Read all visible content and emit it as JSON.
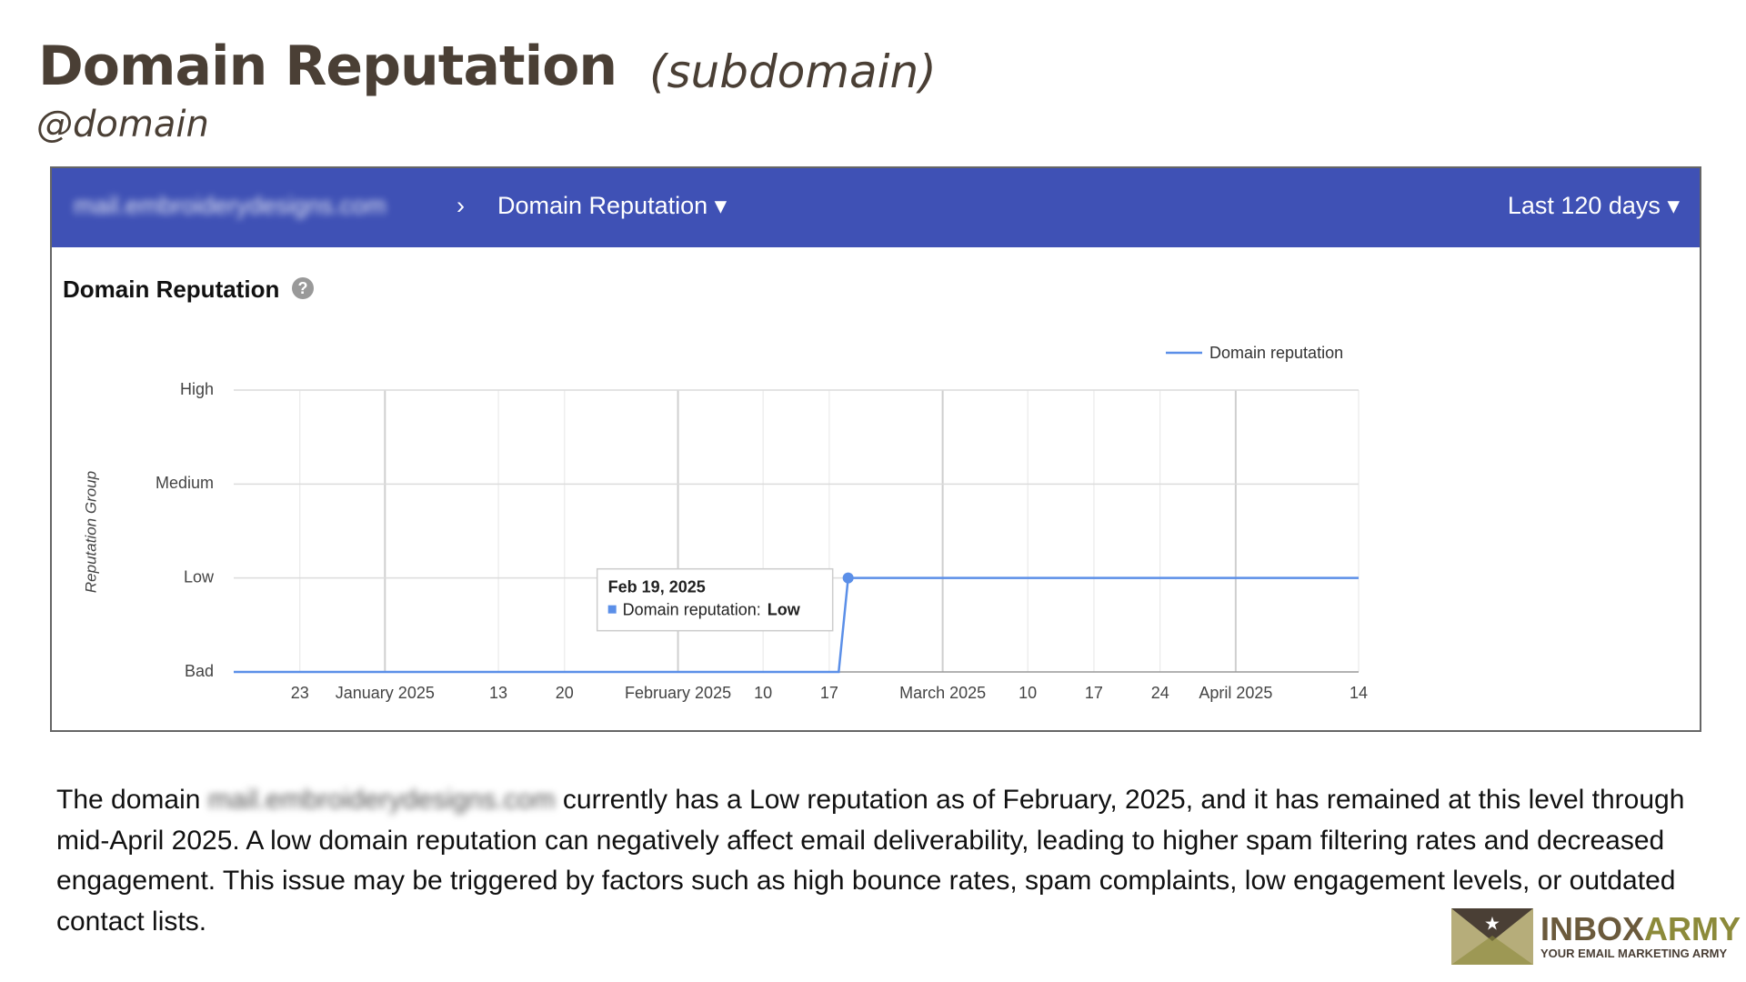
{
  "header": {
    "title": "Domain Reputation",
    "subtitle": "(subdomain)",
    "domain": "@domain"
  },
  "toolbar": {
    "domain": "mail.embroiderydesigns.com",
    "report": "Domain Reputation",
    "range": "Last 120 days"
  },
  "card": {
    "title": "Domain Reputation"
  },
  "chart_data": {
    "type": "line",
    "y_label": "Reputation Group",
    "legend": "top-right",
    "grid": true,
    "x": [
      "2024-12-16",
      "2025-02-18",
      "2025-02-19",
      "2025-04-14"
    ],
    "series": [
      {
        "name": "Domain reputation",
        "color": "#5b8fe8",
        "values": [
          0,
          0,
          1,
          1
        ]
      }
    ],
    "xlim": [
      "2024-12-16",
      "2025-04-14"
    ],
    "xticks": [
      {
        "value": "2024-12-23",
        "label": "23"
      },
      {
        "value": "2025-01-01",
        "label": "January 2025"
      },
      {
        "value": "2025-01-13",
        "label": "13"
      },
      {
        "value": "2025-01-20",
        "label": "20"
      },
      {
        "value": "2025-02-01",
        "label": "February 2025"
      },
      {
        "value": "2025-02-10",
        "label": "10"
      },
      {
        "value": "2025-02-17",
        "label": "17"
      },
      {
        "value": "2025-03-01",
        "label": "March 2025"
      },
      {
        "value": "2025-03-10",
        "label": "10"
      },
      {
        "value": "2025-03-17",
        "label": "17"
      },
      {
        "value": "2025-03-24",
        "label": "24"
      },
      {
        "value": "2025-04-01",
        "label": "April 2025"
      },
      {
        "value": "2025-04-14",
        "label": "14"
      }
    ],
    "ylim": [
      0,
      3
    ],
    "yticks": [
      {
        "value": 0,
        "label": "Bad"
      },
      {
        "value": 1,
        "label": "Low"
      },
      {
        "value": 2,
        "label": "Medium"
      },
      {
        "value": 3,
        "label": "High"
      }
    ],
    "tooltip": {
      "title": "Feb 19, 2025",
      "label": "Domain reputation:",
      "value": "Low"
    }
  },
  "paragraph": {
    "parts": [
      "The domain ",
      "mail.embroiderydesigns.com",
      " currently has a Low reputation as of February, 2025, and it has remained at this level through mid-April 2025. A low domain reputation can negatively affect email deliverability, leading to higher spam filtering rates and decreased engagement. This issue may be triggered by factors such as high bounce rates, spam complaints, low engagement levels, or outdated contact lists."
    ]
  },
  "logo": {
    "name": [
      "INBOX",
      "ARMY"
    ],
    "tagline": "YOUR EMAIL MARKETING ARMY"
  }
}
